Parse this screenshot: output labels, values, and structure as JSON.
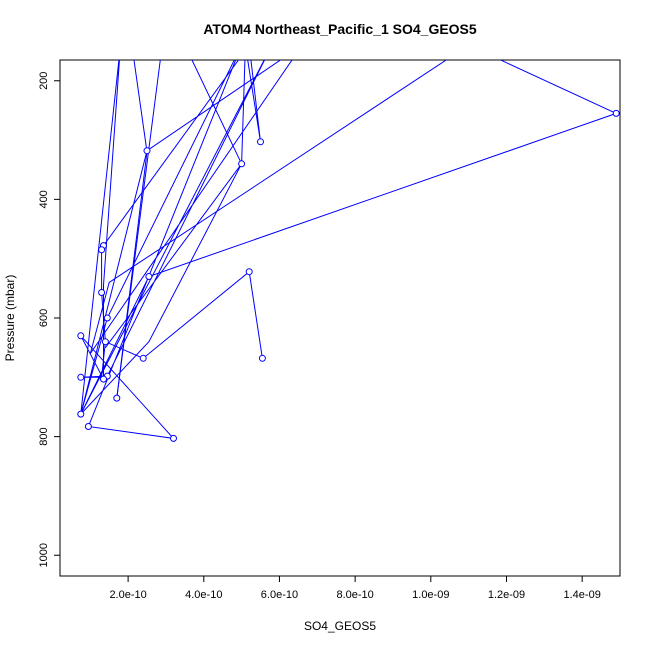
{
  "chart_data": {
    "type": "line",
    "title": "ATOM4 Northeast_Pacific_1 SO4_GEOS5",
    "xlabel": "SO4_GEOS5",
    "ylabel": "Pressure (mbar)",
    "xlim": [
      2e-11,
      1.5e-09
    ],
    "ylim": [
      1035,
      165
    ],
    "y_inverted": true,
    "grid": false,
    "legend": "none",
    "x_ticks": [
      {
        "value": 2e-10,
        "label": "2.0e-10"
      },
      {
        "value": 4e-10,
        "label": "4.0e-10"
      },
      {
        "value": 6e-10,
        "label": "6.0e-10"
      },
      {
        "value": 8e-10,
        "label": "8.0e-10"
      },
      {
        "value": 1e-09,
        "label": "1.0e-09"
      },
      {
        "value": 1.2e-09,
        "label": "1.2e-09"
      },
      {
        "value": 1.4e-09,
        "label": "1.4e-09"
      }
    ],
    "y_ticks": [
      {
        "value": 200,
        "label": "200"
      },
      {
        "value": 400,
        "label": "400"
      },
      {
        "value": 600,
        "label": "600"
      },
      {
        "value": 800,
        "label": "800"
      },
      {
        "value": 1000,
        "label": "1000"
      }
    ],
    "series": [
      {
        "color": "#0000ff",
        "points": [
          {
            "x": 1.7e-10,
            "y": 735
          },
          {
            "x": 2.9e-10,
            "y": 140
          },
          {
            "x": 3.5e-10,
            "y": 140
          },
          {
            "x": 5e-10,
            "y": 340
          },
          {
            "x": 5.1e-10,
            "y": 140
          },
          {
            "x": 5.5e-10,
            "y": 303
          },
          {
            "x": 5.2e-10,
            "y": 140
          },
          {
            "x": 1.35e-10,
            "y": 478
          },
          {
            "x": 1.3e-10,
            "y": 485
          },
          {
            "x": 1.3e-10,
            "y": 557
          },
          {
            "x": 1.4e-10,
            "y": 640
          },
          {
            "x": 2.4e-10,
            "y": 668
          },
          {
            "x": 1.4e-10,
            "y": 640
          },
          {
            "x": 1.3e-10,
            "y": 700
          },
          {
            "x": 7.5e-11,
            "y": 700
          },
          {
            "x": 1.45e-10,
            "y": 698
          },
          {
            "x": 5.8e-10,
            "y": 140
          },
          {
            "x": 7.5e-11,
            "y": 762
          },
          {
            "x": 1.45e-10,
            "y": 600
          },
          {
            "x": 5e-10,
            "y": 140
          },
          {
            "x": 9.5e-11,
            "y": 783
          },
          {
            "x": 3.2e-10,
            "y": 803
          },
          {
            "x": 7.5e-11,
            "y": 630
          },
          {
            "x": 1.35e-10,
            "y": 703
          },
          {
            "x": 1.35e-10,
            "y": 545
          },
          {
            "x": 1.8e-10,
            "y": 140
          },
          {
            "x": 7.5e-11,
            "y": 762
          },
          {
            "x": 2.5e-10,
            "y": 318
          },
          {
            "x": 6.6e-10,
            "y": 140
          },
          {
            "x": 1e-10,
            "y": 660
          },
          {
            "x": 1.5e-10,
            "y": 540
          },
          {
            "x": 1.1e-09,
            "y": 140
          },
          {
            "x": 1.49e-09,
            "y": 255
          },
          {
            "x": 2.55e-10,
            "y": 530
          },
          {
            "x": 7.5e-11,
            "y": 762
          },
          {
            "x": 2.55e-10,
            "y": 640
          },
          {
            "x": 5e-10,
            "y": 340
          },
          {
            "x": 1.4e-10,
            "y": 650
          }
        ],
        "separate_segments": [
          [
            {
              "x": 2.4e-10,
              "y": 668
            },
            {
              "x": 5.2e-10,
              "y": 522
            },
            {
              "x": 5.55e-10,
              "y": 668
            }
          ],
          [
            {
              "x": 1.7e-10,
              "y": 735
            },
            {
              "x": 2.5e-10,
              "y": 320
            },
            {
              "x": 2.1e-10,
              "y": 140
            }
          ]
        ],
        "markers": [
          {
            "x": 2.5e-10,
            "y": 318
          },
          {
            "x": 5.5e-10,
            "y": 303
          },
          {
            "x": 5e-10,
            "y": 340
          },
          {
            "x": 1.49e-09,
            "y": 255
          },
          {
            "x": 1.35e-10,
            "y": 478
          },
          {
            "x": 1.3e-10,
            "y": 485
          },
          {
            "x": 2.55e-10,
            "y": 530
          },
          {
            "x": 5.2e-10,
            "y": 522
          },
          {
            "x": 1.3e-10,
            "y": 557
          },
          {
            "x": 1.45e-10,
            "y": 600
          },
          {
            "x": 7.5e-11,
            "y": 630
          },
          {
            "x": 1.4e-10,
            "y": 640
          },
          {
            "x": 2.4e-10,
            "y": 668
          },
          {
            "x": 5.55e-10,
            "y": 668
          },
          {
            "x": 7.5e-11,
            "y": 700
          },
          {
            "x": 1.45e-10,
            "y": 698
          },
          {
            "x": 1.35e-10,
            "y": 703
          },
          {
            "x": 1.7e-10,
            "y": 735
          },
          {
            "x": 7.5e-11,
            "y": 762
          },
          {
            "x": 9.5e-11,
            "y": 783
          },
          {
            "x": 3.2e-10,
            "y": 803
          }
        ]
      }
    ]
  }
}
